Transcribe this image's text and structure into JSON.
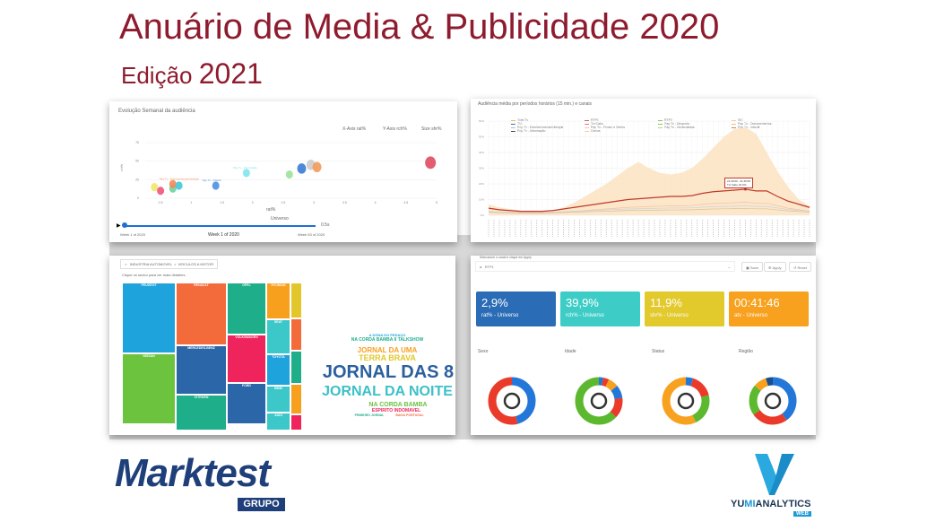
{
  "slide": {
    "title": "Anuário de Media & Publicidade 2020",
    "subtitle_prefix": "Edição",
    "subtitle_year": "2021"
  },
  "colors": {
    "title": "#8e1b2e",
    "brand_marktest": "#1f3f7a",
    "brand_yumi": "#1a9ad6"
  },
  "scatter_panel": {
    "title": "Evolução Semanal da audiência",
    "x_axis_select": "X-Axis  rat%",
    "y_axis_select": "Y-Axis  rch%",
    "size_select": "Size  shr%",
    "x_label": "rat%",
    "y_label": "rch%",
    "group_label": "Universo",
    "speed": "0.5s",
    "week_start": "Week 1 of 2020",
    "week_current": "Week 1 of 2020",
    "week_end": "Week 53 of 2020",
    "x_ticks": [
      "0.5",
      "1",
      "1.5",
      "2",
      "2.5",
      "3",
      "3.5",
      "4",
      "4.5",
      "5"
    ],
    "y_ticks": [
      "0",
      "25",
      "50",
      "75"
    ],
    "points": [
      {
        "x": 0.4,
        "y": 15,
        "c": "#f3e46a"
      },
      {
        "x": 0.5,
        "y": 10,
        "c": "#f0557a"
      },
      {
        "x": 0.7,
        "y": 13,
        "c": "#6fd3a0"
      },
      {
        "x": 0.7,
        "y": 19,
        "c": "#f28a5a",
        "label": "Pay Tv - Entretenimento/Lifestyle"
      },
      {
        "x": 0.8,
        "y": 17,
        "c": "#41c9d8"
      },
      {
        "x": 1.4,
        "y": 17,
        "c": "#4a90e2",
        "label": "Pay Tv - Infantil"
      },
      {
        "x": 1.9,
        "y": 34,
        "c": "#7fe6ea",
        "label": "Pay Tv - Informação"
      },
      {
        "x": 2.6,
        "y": 32,
        "c": "#9be39b"
      },
      {
        "x": 2.8,
        "y": 40,
        "c": "#3a7bd5"
      },
      {
        "x": 2.95,
        "y": 45,
        "c": "#cccccc"
      },
      {
        "x": 3.05,
        "y": 42,
        "c": "#f29a5a"
      },
      {
        "x": 4.9,
        "y": 48,
        "c": "#e04a5f"
      }
    ]
  },
  "line_panel": {
    "title": "Audiência média por períodos horários (15 min.) e canais",
    "legend": [
      {
        "name": "Total Tv",
        "c": "#f5a623"
      },
      {
        "name": "RTP1",
        "c": "#c0392b"
      },
      {
        "name": "RTP2",
        "c": "#7cb342"
      },
      {
        "name": "SIC",
        "c": "#f0c27b"
      },
      {
        "name": "TVI",
        "c": "#2c6fbb"
      },
      {
        "name": "Tvi Cabo",
        "c": "#e57373"
      },
      {
        "name": "Pay Tv - Desporto",
        "c": "#8bc34a"
      },
      {
        "name": "Pay Tv - Documentarios",
        "c": "#ffb74d"
      },
      {
        "name": "Pay Tv - Entretenimento/Lifestyle",
        "c": "#b0bec5"
      },
      {
        "name": "Pay Tv - Filmes e Séries",
        "c": "#f8bbd0"
      },
      {
        "name": "Pay Tv - Generalistas",
        "c": "#aed581"
      },
      {
        "name": "Pay Tv - Infantil",
        "c": "#a1887f"
      },
      {
        "name": "Pay Tv - Informação",
        "c": "#37474f"
      },
      {
        "name": "Outros",
        "c": "#ffcc80"
      }
    ],
    "y_ticks": [
      "0%",
      "10%",
      "20%",
      "30%",
      "40%",
      "50%",
      "60%"
    ],
    "tooltip_time": "21:30:00 - 21:45:00",
    "tooltip_series": "Tvi Cabo",
    "tooltip_value": "16.6%",
    "total_tv": [
      7,
      5,
      4,
      3,
      3,
      3,
      3,
      5,
      8,
      12,
      16,
      20,
      25,
      30,
      34,
      30,
      27,
      26,
      27,
      30,
      36,
      43,
      50,
      55,
      56,
      52,
      40,
      28,
      18,
      10,
      6
    ],
    "tvi_cabo": [
      4.5,
      3.5,
      3,
      2.5,
      2.5,
      2.5,
      3,
      4,
      5,
      6,
      7,
      8,
      9,
      10,
      10.5,
      11,
      11.5,
      12,
      12,
      12.5,
      14,
      15,
      15.5,
      16,
      16.6,
      15.5,
      15.5,
      12,
      9,
      7,
      5
    ]
  },
  "treemap_panel": {
    "breadcrumb": [
      "INDUSTRIA AUTOMOVEL",
      "VEICULOS A MOTOR"
    ],
    "hint": "Clique no sector para ver mais detalhes",
    "cells": [
      {
        "name": "PEUGEOT",
        "c": "#1fa3dc"
      },
      {
        "name": "NISSAN",
        "c": "#6cc33d"
      },
      {
        "name": "RENAULT",
        "c": "#f46b3b"
      },
      {
        "name": "MERCEDES-BENZ",
        "c": "#2b66a8"
      },
      {
        "name": "CITROEN",
        "c": "#1fae8a"
      },
      {
        "name": "OPEL",
        "c": "#1fae8a"
      },
      {
        "name": "VOLKSWAGEN",
        "c": "#f0245c"
      },
      {
        "name": "FORD",
        "c": "#2b66a8"
      },
      {
        "name": "HYUNDAI",
        "c": "#f7a01e"
      },
      {
        "name": "SEAT",
        "c": "#3cc8c8"
      },
      {
        "name": "TOYOTA",
        "c": "#1fa3dc"
      },
      {
        "name": "BMW",
        "c": "#3cc8c8"
      },
      {
        "name": "AUDI",
        "c": "#3cc8c8"
      },
      {
        "name": "",
        "c": "#e3c72a"
      },
      {
        "name": "",
        "c": "#f46b3b"
      },
      {
        "name": "",
        "c": "#1fae8a"
      },
      {
        "name": "",
        "c": "#f7a01e"
      },
      {
        "name": "",
        "c": "#f0245c"
      }
    ],
    "words": [
      {
        "t": "A DONA DO PEDAÇO",
        "c": "#1fa3dc",
        "s": 4
      },
      {
        "t": "NA CORDA BAMBA II TALKSHOW",
        "c": "#1fae8a",
        "s": 5
      },
      {
        "t": "JORNAL DA UMA",
        "c": "#f7a01e",
        "s": 8
      },
      {
        "t": "TERRA BRAVA",
        "c": "#e3c72a",
        "s": 9
      },
      {
        "t": "JORNAL DAS 8",
        "c": "#2b5f9e",
        "s": 20
      },
      {
        "t": "JORNAL DA NOITE",
        "c": "#3cc0c8",
        "s": 16
      },
      {
        "t": "NA CORDA BAMBA",
        "c": "#6cc33d",
        "s": 7
      },
      {
        "t": "ESPIRITO INDOMAVEL",
        "c": "#f0245c",
        "s": 5
      },
      {
        "t": "PRIMEIRO JORNAL",
        "c": "#1fae8a",
        "s": 3.5
      },
      {
        "t": "BAIXA PORTUGAL",
        "c": "#f46b3b",
        "s": 3.5
      }
    ]
  },
  "kpi_panel": {
    "hint": "Seleccione o canal e clique em Apply",
    "channel": "RTP1",
    "save": "Save",
    "apply": "Apply",
    "reset": "Reset",
    "kpis": [
      {
        "value": "2,9%",
        "label": "rat% - Universo",
        "c": "#2a6cb5"
      },
      {
        "value": "39,9%",
        "label": "rch% - Universo",
        "c": "#3ecdc6"
      },
      {
        "value": "11,9%",
        "label": "shr% - Universo",
        "c": "#e2c92c"
      },
      {
        "value": "00:41:46",
        "label": "atv - Universo",
        "c": "#f7a11e"
      }
    ],
    "sections": [
      {
        "title": "Sexo",
        "icon": "gender-icon",
        "slices": [
          [
            46,
            "#2277d8"
          ],
          [
            54,
            "#ea3a2a"
          ]
        ]
      },
      {
        "title": "Idade",
        "icon": "people-icon",
        "slices": [
          [
            3,
            "#2277d8"
          ],
          [
            4,
            "#ea3a2a"
          ],
          [
            7,
            "#f7a11e"
          ],
          [
            9,
            "#2277d8"
          ],
          [
            14,
            "#ea3a2a"
          ],
          [
            63,
            "#5cb82e"
          ]
        ]
      },
      {
        "title": "Status",
        "icon": "money-bag-icon",
        "slices": [
          [
            5,
            "#2277d8"
          ],
          [
            16,
            "#ea3a2a"
          ],
          [
            22,
            "#5cb82e"
          ],
          [
            57,
            "#f7a11e"
          ]
        ]
      },
      {
        "title": "Região",
        "icon": "map-icon",
        "slices": [
          [
            40,
            "#2277d8"
          ],
          [
            25,
            "#ea3a2a"
          ],
          [
            21,
            "#5cb82e"
          ],
          [
            9,
            "#f7a11e"
          ],
          [
            5,
            "#1a4f8f"
          ]
        ]
      }
    ]
  },
  "logos": {
    "marktest": "Marktest",
    "grupo": "GRUPO",
    "yumi_a": "YU",
    "yumi_b": "MI",
    "yumi_c": "ANALYTICS",
    "web": "WEB"
  }
}
